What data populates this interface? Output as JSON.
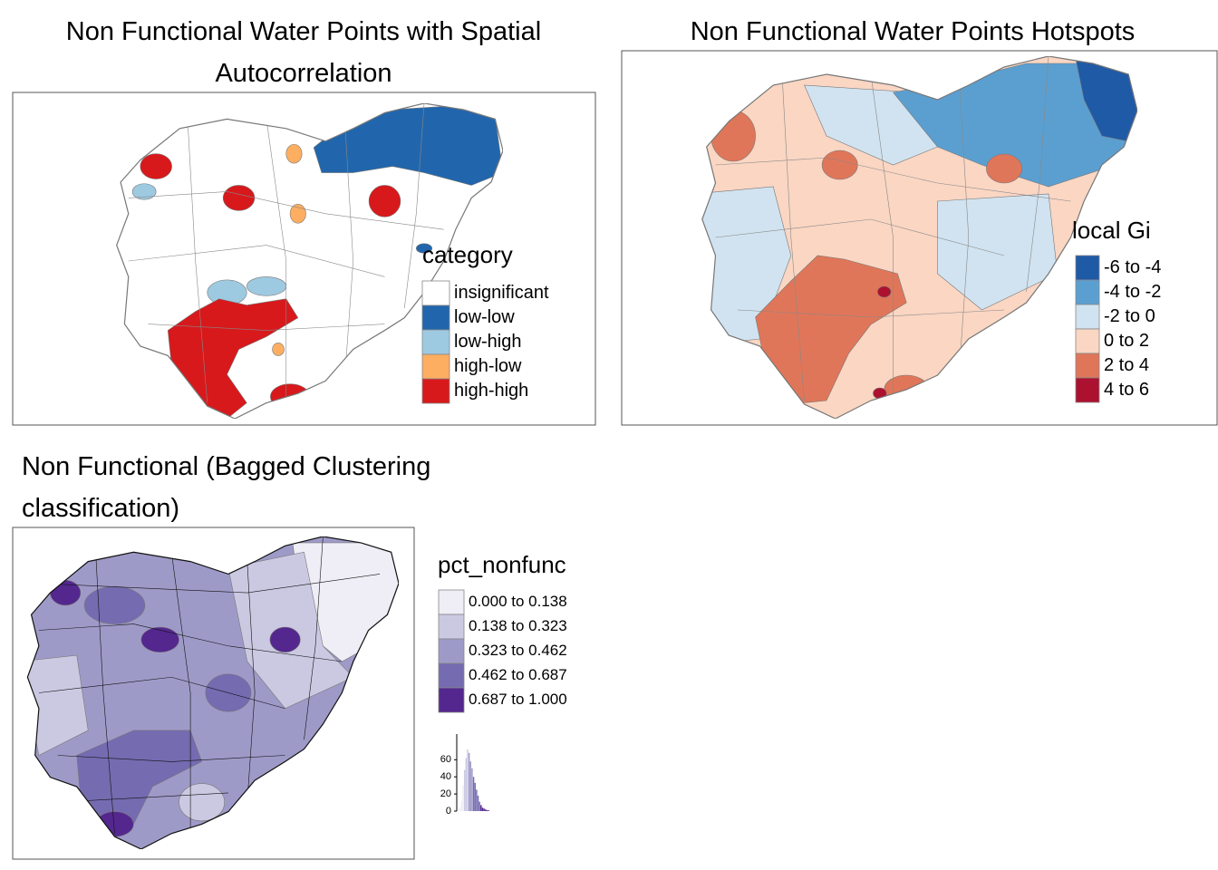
{
  "maps": [
    {
      "title": "Non Functional Water Points with Spatial Autocorrelation",
      "legend": {
        "title": "category",
        "items": [
          {
            "label": "insignificant",
            "color": "#ffffff"
          },
          {
            "label": "low-low",
            "color": "#2166ac"
          },
          {
            "label": "low-high",
            "color": "#9ecae1"
          },
          {
            "label": "high-low",
            "color": "#fdae61"
          },
          {
            "label": "high-high",
            "color": "#d7191c"
          }
        ]
      }
    },
    {
      "title": "Non Functional Water Points Hotspots",
      "legend": {
        "title": "local Gi",
        "items": [
          {
            "label": "-6 to -4",
            "color": "#1f5aa6"
          },
          {
            "label": "-4 to -2",
            "color": "#5b9fd0"
          },
          {
            "label": "-2 to 0",
            "color": "#d1e3f0"
          },
          {
            "label": "0 to 2",
            "color": "#fad6c3"
          },
          {
            "label": "2 to 4",
            "color": "#e07659"
          },
          {
            "label": "4 to 6",
            "color": "#ad1130"
          }
        ]
      }
    },
    {
      "title": "Non Functional (Bagged Clustering classification)",
      "legend": {
        "title": "pct_nonfunc",
        "items": [
          {
            "label": "0.000 to 0.138",
            "color": "#efedf5",
            "from": 0.0,
            "to": 0.138
          },
          {
            "label": "0.138 to 0.323",
            "color": "#cbc9e2",
            "from": 0.138,
            "to": 0.323
          },
          {
            "label": "0.323 to 0.462",
            "color": "#9e9ac8",
            "from": 0.323,
            "to": 0.462
          },
          {
            "label": "0.462 to 0.687",
            "color": "#756bb1",
            "from": 0.462,
            "to": 0.687
          },
          {
            "label": "0.687 to 1.000",
            "color": "#54278f",
            "from": 0.687,
            "to": 1.0
          }
        ]
      },
      "histogram": {
        "type": "histogram",
        "ylim": [
          0,
          90
        ],
        "yticks": [
          0,
          20,
          40,
          60
        ],
        "bins": [
          0,
          0.05,
          0.1,
          0.15,
          0.2,
          0.25,
          0.3,
          0.35,
          0.4,
          0.45,
          0.5,
          0.55,
          0.6,
          0.65,
          0.7,
          0.75,
          0.8,
          0.85,
          0.9,
          0.95,
          1.0
        ],
        "counts": [
          4,
          12,
          30,
          48,
          62,
          72,
          68,
          58,
          50,
          40,
          33,
          25,
          18,
          11,
          7,
          4,
          3,
          2,
          1,
          1
        ]
      }
    }
  ]
}
